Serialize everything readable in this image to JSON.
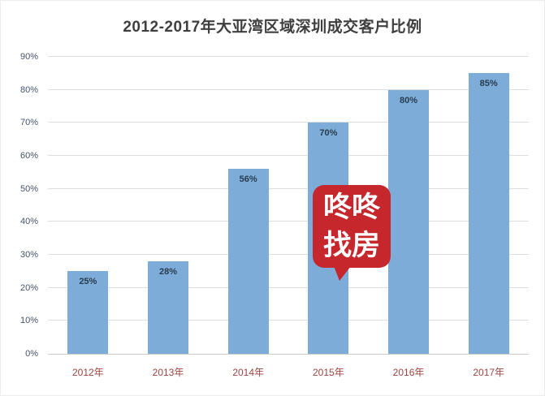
{
  "title": "2012-2017年大亚湾区域深圳成交客户比例",
  "chart_data": {
    "type": "bar",
    "title": "2012-2017年大亚湾区域深圳成交客户比例",
    "categories": [
      "2012年",
      "2013年",
      "2014年",
      "2015年",
      "2016年",
      "2017年"
    ],
    "values": [
      25,
      28,
      56,
      70,
      80,
      85
    ],
    "data_labels": [
      "25%",
      "28%",
      "56%",
      "70%",
      "80%",
      "85%"
    ],
    "xlabel": "",
    "ylabel": "",
    "ylim": [
      0,
      90
    ],
    "ytick_step": 10,
    "ytick_suffix": "%",
    "grid": true,
    "legend": "none",
    "bar_color": "#7eacd8",
    "value_label_color": "#273c4e",
    "x_label_color": "#9a4540",
    "y_label_color": "#44546a"
  },
  "watermark": {
    "line1": "咚咚",
    "line2": "找房",
    "color": "#c5272d"
  }
}
